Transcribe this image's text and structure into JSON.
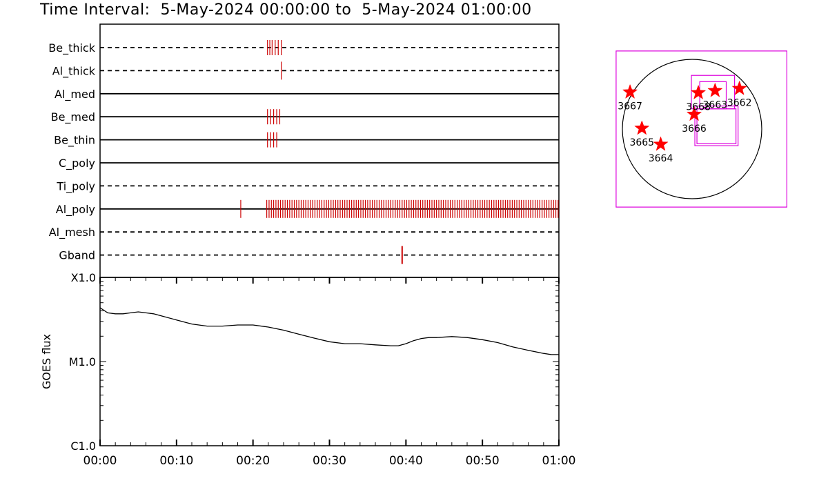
{
  "title": "Time Interval:  5-May-2024 00:00:00 to  5-May-2024 01:00:00",
  "colors": {
    "event": "#cc0000",
    "star": "#ff0000",
    "box": "#dd00dd",
    "axis": "#000000"
  },
  "chart_data": [
    {
      "type": "timeline",
      "x_range_minutes": [
        0,
        60
      ],
      "channels": [
        {
          "name": "Be_thick",
          "line": "dashed",
          "events": [
            21.9,
            22.2,
            22.5,
            22.9,
            23.3,
            23.7
          ]
        },
        {
          "name": "Al_thick",
          "line": "dashed",
          "events": [
            23.7
          ]
        },
        {
          "name": "Al_med",
          "line": "solid",
          "events": []
        },
        {
          "name": "Be_med",
          "line": "solid",
          "events": [
            21.9,
            22.3,
            22.7,
            23.1,
            23.5
          ]
        },
        {
          "name": "Be_thin",
          "line": "solid",
          "events": [
            21.9,
            22.3,
            22.7,
            23.1
          ]
        },
        {
          "name": "C_poly",
          "line": "solid",
          "events": []
        },
        {
          "name": "Ti_poly",
          "line": "dashed",
          "events": []
        },
        {
          "name": "Al_poly",
          "line": "solid",
          "events": [
            18.4,
            "dense:21.8-60.0"
          ]
        },
        {
          "name": "Al_mesh",
          "line": "dashed",
          "events": []
        },
        {
          "name": "Gband",
          "line": "dashed",
          "events": [
            39.5
          ]
        }
      ]
    },
    {
      "type": "line",
      "ylabel": "GOES flux",
      "yscale": "log",
      "ylim": [
        1e-06,
        0.0001
      ],
      "ytick_labels": [
        {
          "value": 0.0001,
          "label": "X1.0"
        },
        {
          "value": 1e-05,
          "label": "M1.0"
        },
        {
          "value": 1e-06,
          "label": "C1.0"
        }
      ],
      "xtick_labels": [
        "00:00",
        "00:10",
        "00:20",
        "00:30",
        "00:40",
        "00:50",
        "01:00"
      ],
      "x": [
        0,
        1,
        2,
        3,
        4,
        5,
        6,
        7,
        8,
        10,
        12,
        14,
        16,
        18,
        20,
        22,
        24,
        26,
        28,
        30,
        32,
        34,
        36,
        38,
        39,
        40,
        41,
        42,
        43,
        44,
        46,
        48,
        50,
        52,
        54,
        56,
        58,
        59,
        60
      ],
      "y": [
        4.36e-05,
        3.79e-05,
        3.69e-05,
        3.69e-05,
        3.79e-05,
        3.89e-05,
        3.79e-05,
        3.69e-05,
        3.49e-05,
        3.12e-05,
        2.79e-05,
        2.64e-05,
        2.64e-05,
        2.72e-05,
        2.72e-05,
        2.57e-05,
        2.36e-05,
        2.11e-05,
        1.9e-05,
        1.72e-05,
        1.63e-05,
        1.63e-05,
        1.58e-05,
        1.54e-05,
        1.54e-05,
        1.63e-05,
        1.77e-05,
        1.88e-05,
        1.93e-05,
        1.93e-05,
        1.98e-05,
        1.93e-05,
        1.82e-05,
        1.68e-05,
        1.49e-05,
        1.36e-05,
        1.25e-05,
        1.21e-05,
        1.21e-05
      ]
    },
    {
      "type": "scatter",
      "description_type": "solar-disk",
      "x_range_minutes": null,
      "points": [
        {
          "label": "3667",
          "x": -0.89,
          "y": 0.53
        },
        {
          "label": "3665",
          "x": -0.72,
          "y": 0.01
        },
        {
          "label": "3664",
          "x": -0.45,
          "y": -0.22
        },
        {
          "label": "3666",
          "x": 0.03,
          "y": 0.21
        },
        {
          "label": "3668",
          "x": 0.09,
          "y": 0.52
        },
        {
          "label": "3663",
          "x": 0.33,
          "y": 0.55
        },
        {
          "label": "3662",
          "x": 0.68,
          "y": 0.58
        }
      ],
      "boxes": [
        {
          "x1": -1.09,
          "y1": 1.12,
          "x2": 1.36,
          "y2": -1.12
        },
        {
          "x1": -0.01,
          "y1": 0.77,
          "x2": 0.61,
          "y2": 0.29
        },
        {
          "x1": 0.11,
          "y1": 0.68,
          "x2": 0.49,
          "y2": 0.29
        },
        {
          "x1": 0.04,
          "y1": 0.33,
          "x2": 0.66,
          "y2": -0.24
        },
        {
          "x1": 0.07,
          "y1": 0.29,
          "x2": 0.63,
          "y2": -0.21
        }
      ]
    }
  ]
}
